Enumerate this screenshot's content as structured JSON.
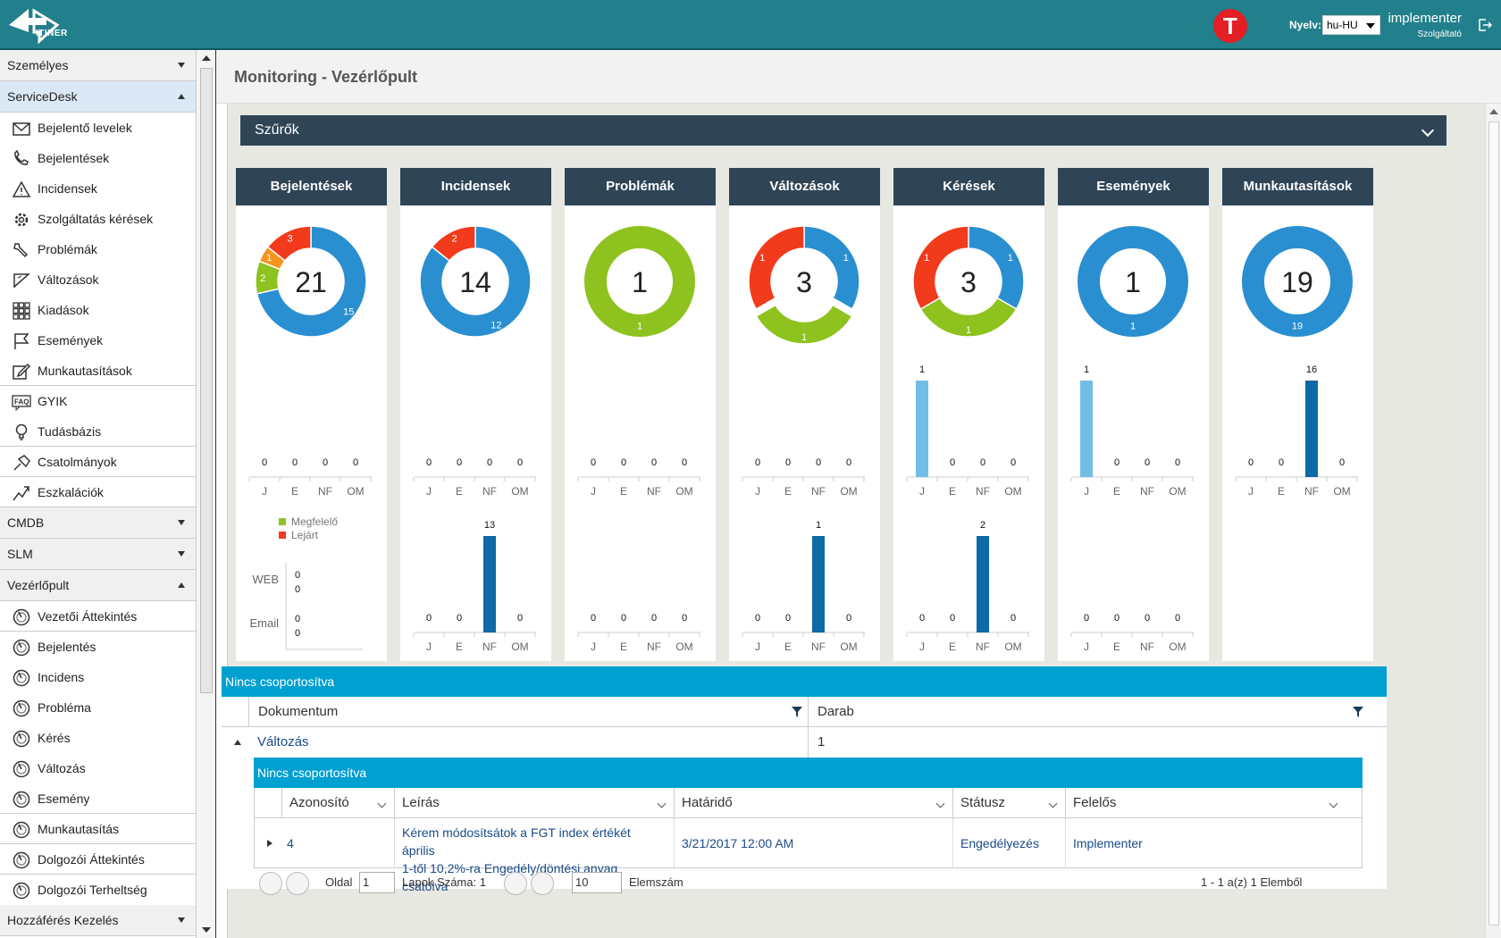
{
  "header": {
    "logo_text": "ITINER",
    "avatar_letter": "T",
    "language_label": "Nyelv:",
    "language_value": "hu-HU",
    "user_name": "implementer",
    "user_role": "Szolgáltató"
  },
  "sidebar": {
    "groups": [
      {
        "label": "Személyes",
        "state": "closed"
      },
      {
        "label": "ServiceDesk",
        "state": "open"
      },
      {
        "label": "CMDB",
        "state": "closed"
      },
      {
        "label": "SLM",
        "state": "closed"
      },
      {
        "label": "Vezérlőpult",
        "state": "open"
      },
      {
        "label": "Hozzáférés Kezelés",
        "state": "closed"
      }
    ],
    "servicedesk_items": [
      {
        "label": "Bejelentő levelek",
        "icon": "envelope-icon"
      },
      {
        "label": "Bejelentések",
        "icon": "phone-icon"
      },
      {
        "label": "Incidensek",
        "icon": "warning-icon"
      },
      {
        "label": "Szolgáltatás kérések",
        "icon": "gear-icon"
      },
      {
        "label": "Problémák",
        "icon": "wrench-icon"
      },
      {
        "label": "Változások",
        "icon": "flag-check-icon"
      },
      {
        "label": "Kiadások",
        "icon": "grid-icon"
      },
      {
        "label": "Események",
        "icon": "flag-icon"
      },
      {
        "label": "Munkautasítások",
        "icon": "edit-icon"
      },
      {
        "label": "GYIK",
        "icon": "faq-icon"
      },
      {
        "label": "Tudásbázis",
        "icon": "bulb-icon"
      },
      {
        "label": "Csatolmányok",
        "icon": "pin-icon"
      },
      {
        "label": "Eszkalációk",
        "icon": "escalation-icon"
      }
    ],
    "dashboard_items": [
      {
        "label": "Vezetői Áttekintés"
      },
      {
        "label": "Bejelentés"
      },
      {
        "label": "Incidens"
      },
      {
        "label": "Probléma"
      },
      {
        "label": "Kérés"
      },
      {
        "label": "Változás"
      },
      {
        "label": "Esemény"
      },
      {
        "label": "Munkautasítás"
      },
      {
        "label": "Dolgozói Áttekintés"
      },
      {
        "label": "Dolgozói Terheltség"
      }
    ]
  },
  "page": {
    "title": "Monitoring - Vezérlőpult",
    "filters_label": "Szűrők"
  },
  "colors": {
    "blue": "#2a8fd0",
    "green": "#8ec21f",
    "red": "#f23a1c",
    "orange": "#f7941d",
    "light_blue_bar": "#72bde6",
    "dark_blue_bar": "#0e6aa6"
  },
  "cards": [
    {
      "title": "Bejelentések",
      "total": "21",
      "donut": [
        {
          "value": 15,
          "color": "blue",
          "label": "15"
        },
        {
          "value": 2,
          "color": "green",
          "label": "2"
        },
        {
          "value": 1,
          "color": "orange",
          "label": "1"
        },
        {
          "value": 3,
          "color": "red",
          "label": "3"
        }
      ],
      "chart1": {
        "categories": [
          "J",
          "E",
          "NF",
          "OM"
        ],
        "values": [
          0,
          0,
          0,
          0
        ],
        "color": "light_blue_bar"
      },
      "legend": [
        "Megfelelő",
        "Lejárt"
      ],
      "source_chart": {
        "categories": [
          "WEB",
          "Email"
        ],
        "values": [
          [
            "0",
            "0"
          ],
          [
            "0",
            "0"
          ]
        ]
      }
    },
    {
      "title": "Incidensek",
      "total": "14",
      "donut": [
        {
          "value": 12,
          "color": "blue",
          "label": "12"
        },
        {
          "value": 2,
          "color": "red",
          "label": "2"
        }
      ],
      "chart1": {
        "categories": [
          "J",
          "E",
          "NF",
          "OM"
        ],
        "values": [
          0,
          0,
          0,
          0
        ],
        "color": "light_blue_bar"
      },
      "chart2": {
        "categories": [
          "J",
          "E",
          "NF",
          "OM"
        ],
        "values": [
          0,
          0,
          13,
          0
        ],
        "color": "dark_blue_bar"
      }
    },
    {
      "title": "Problémák",
      "total": "1",
      "donut": [
        {
          "value": 1,
          "color": "green",
          "label": "1"
        }
      ],
      "chart1": {
        "categories": [
          "J",
          "E",
          "NF",
          "OM"
        ],
        "values": [
          0,
          0,
          0,
          0
        ],
        "color": "light_blue_bar"
      },
      "chart2": {
        "categories": [
          "J",
          "E",
          "NF",
          "OM"
        ],
        "values": [
          0,
          0,
          0,
          0
        ],
        "color": "dark_blue_bar"
      }
    },
    {
      "title": "Változások",
      "total": "3",
      "donut": [
        {
          "value": 1,
          "color": "blue",
          "label": "1"
        },
        {
          "value": 1,
          "color": "green",
          "label": "1",
          "explode": true
        },
        {
          "value": 1,
          "color": "red",
          "label": "1"
        }
      ],
      "chart1": {
        "categories": [
          "J",
          "E",
          "NF",
          "OM"
        ],
        "values": [
          0,
          0,
          0,
          0
        ],
        "color": "light_blue_bar"
      },
      "chart2": {
        "categories": [
          "J",
          "E",
          "NF",
          "OM"
        ],
        "values": [
          0,
          0,
          1,
          0
        ],
        "color": "dark_blue_bar"
      }
    },
    {
      "title": "Kérések",
      "total": "3",
      "donut": [
        {
          "value": 1,
          "color": "blue",
          "label": "1"
        },
        {
          "value": 1,
          "color": "green",
          "label": "1"
        },
        {
          "value": 1,
          "color": "red",
          "label": "1"
        }
      ],
      "chart1": {
        "categories": [
          "J",
          "E",
          "NF",
          "OM"
        ],
        "values": [
          1,
          0,
          0,
          0
        ],
        "color": "light_blue_bar"
      },
      "chart2": {
        "categories": [
          "J",
          "E",
          "NF",
          "OM"
        ],
        "values": [
          0,
          0,
          2,
          0
        ],
        "color": "dark_blue_bar"
      }
    },
    {
      "title": "Események",
      "total": "1",
      "donut": [
        {
          "value": 1,
          "color": "blue",
          "label": "1"
        }
      ],
      "chart1": {
        "categories": [
          "J",
          "E",
          "NF",
          "OM"
        ],
        "values": [
          1,
          0,
          0,
          0
        ],
        "color": "light_blue_bar"
      },
      "chart2": {
        "categories": [
          "J",
          "E",
          "NF",
          "OM"
        ],
        "values": [
          0,
          0,
          0,
          0
        ],
        "color": "dark_blue_bar"
      }
    },
    {
      "title": "Munkautasítások",
      "total": "19",
      "donut": [
        {
          "value": 19,
          "color": "blue",
          "label": "19"
        }
      ],
      "chart1": {
        "categories": [
          "J",
          "E",
          "NF",
          "OM"
        ],
        "values": [
          0,
          0,
          16,
          0
        ],
        "color": "dark_blue_bar"
      }
    }
  ],
  "grid": {
    "group_label": "Nincs csoportosítva",
    "col_document": "Dokumentum",
    "col_count": "Darab",
    "row_document": "Változás",
    "row_count": "1",
    "inner": {
      "group_label": "Nincs csoportosítva",
      "columns": [
        "Azonosító",
        "Leírás",
        "Határidő",
        "Státusz",
        "Felelős"
      ],
      "row": {
        "id": "4",
        "description_line1": "Kérem módosítsátok a FGT index értékét április",
        "description_line2": "1-től 10,2%-ra Engedély/döntési anyag csatolva",
        "deadline": "3/21/2017 12:00 AM",
        "status": "Engedélyezés",
        "owner": "Implementer"
      },
      "pager": {
        "page_label": "Oldal",
        "page_value": "1",
        "pages_label": "Lapok Száma: 1",
        "per_page_value": "10",
        "items_label": "Elemszám",
        "summary": "1 - 1 a(z) 1 Elemből"
      }
    }
  }
}
